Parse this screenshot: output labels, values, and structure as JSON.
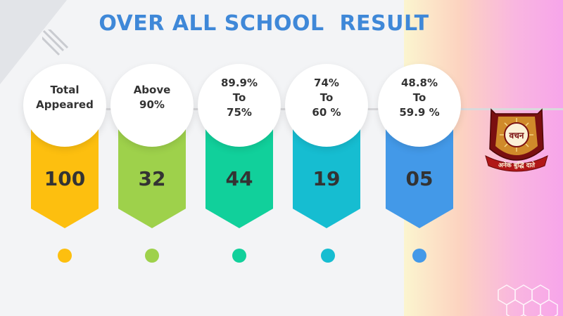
{
  "title": "OVER ALL SCHOOL  RESULT",
  "colors": {
    "title": "#3f88d8",
    "cards": [
      "#fdbf0f",
      "#9ed14b",
      "#11d09b",
      "#16bdd1",
      "#4399e8"
    ]
  },
  "categories": [
    {
      "label": "Total\nAppeared",
      "value": "100"
    },
    {
      "label": "Above\n90%",
      "value": "32"
    },
    {
      "label": "89.9%\nTo\n75%",
      "value": "44"
    },
    {
      "label": "74%\nTo\n60 %",
      "value": "19"
    },
    {
      "label": "48.8%\nTo\n59.9 %",
      "value": "05"
    }
  ],
  "emblem": {
    "center_text": "वचन",
    "ribbon_text": "अनेक बुद्धि दाते"
  }
}
